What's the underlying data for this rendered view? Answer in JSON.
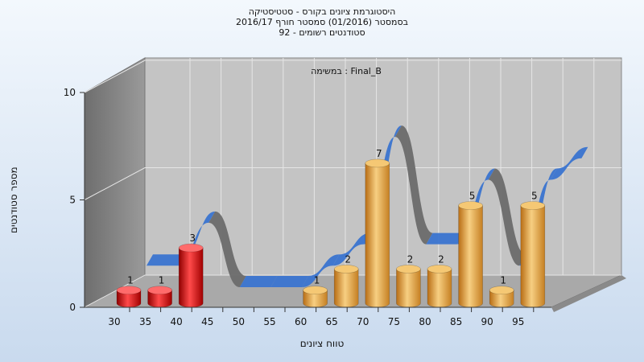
{
  "chart_data": {
    "type": "bar",
    "title": "היסטוגרמת ציונים בקורס - סטטיסטיקה",
    "subtitle": "בסמסטר  (01/2016)  סמסטר חורף  2016/17",
    "registered": "סטודנטים רשומים - 92",
    "annotation": "במשימה : Final_B",
    "xlabel": "טווח ציונים",
    "ylabel": "מספר סטודנטים",
    "ylim": [
      0,
      10
    ],
    "yticks": [
      "0",
      "5",
      "10"
    ],
    "categories": [
      "30",
      "35",
      "40",
      "45",
      "50",
      "55",
      "60",
      "65",
      "70",
      "75",
      "80",
      "85",
      "90",
      "95"
    ],
    "values": [
      1,
      1,
      3,
      0,
      0,
      0,
      1,
      2,
      7,
      2,
      2,
      5,
      1,
      5
    ],
    "colors": {
      "fail": "#e01515",
      "pass": "#e8a43c",
      "curve_rise": "#3a74d0",
      "curve_fall": "#6b6b6b"
    },
    "fail_threshold": 60
  }
}
